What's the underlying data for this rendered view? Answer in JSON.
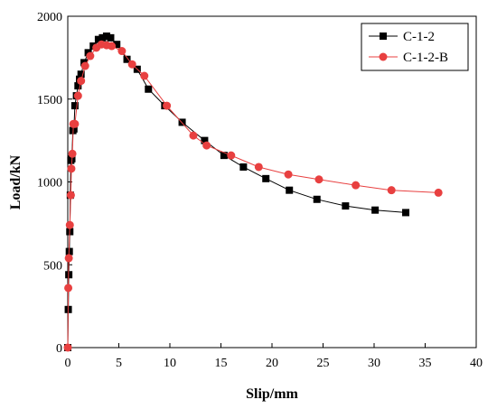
{
  "chart_data": {
    "type": "line",
    "title": "",
    "xlabel": "Slip/mm",
    "ylabel": "Load/kN",
    "xlim": [
      0,
      40
    ],
    "ylim": [
      0,
      2000
    ],
    "xticks": [
      0,
      5,
      10,
      15,
      20,
      25,
      30,
      35,
      40
    ],
    "yticks": [
      0,
      500,
      1000,
      1500,
      2000
    ],
    "grid": false,
    "legend_position": "top-right",
    "series": [
      {
        "name": "C-1-2",
        "color": "#000000",
        "marker": "square",
        "x": [
          0,
          0.05,
          0.1,
          0.15,
          0.2,
          0.25,
          0.3,
          0.4,
          0.5,
          0.6,
          0.7,
          0.85,
          1.0,
          1.15,
          1.3,
          1.6,
          2.0,
          2.5,
          3.0,
          3.4,
          3.8,
          4.2,
          4.8,
          5.8,
          6.8,
          7.9,
          9.5,
          11.2,
          13.4,
          15.3,
          17.2,
          19.4,
          21.7,
          24.4,
          27.2,
          30.1,
          33.1
        ],
        "y": [
          0,
          230,
          440,
          580,
          700,
          920,
          1130,
          1140,
          1310,
          1320,
          1460,
          1520,
          1580,
          1620,
          1650,
          1720,
          1780,
          1820,
          1860,
          1870,
          1880,
          1870,
          1830,
          1740,
          1680,
          1560,
          1460,
          1360,
          1250,
          1160,
          1090,
          1020,
          950,
          895,
          855,
          830,
          815
        ]
      },
      {
        "name": "C-1-2-B",
        "color": "#e84040",
        "marker": "circle",
        "x": [
          0,
          0.05,
          0.1,
          0.2,
          0.3,
          0.35,
          0.45,
          0.55,
          0.7,
          1.0,
          1.3,
          1.7,
          2.2,
          2.8,
          3.3,
          3.8,
          4.3,
          5.3,
          6.3,
          7.5,
          9.7,
          12.3,
          13.6,
          16.0,
          18.7,
          21.6,
          24.6,
          28.2,
          31.7,
          36.3
        ],
        "y": [
          0,
          360,
          540,
          740,
          920,
          1080,
          1170,
          1350,
          1350,
          1520,
          1610,
          1700,
          1760,
          1810,
          1830,
          1825,
          1820,
          1790,
          1710,
          1640,
          1460,
          1280,
          1220,
          1160,
          1090,
          1045,
          1015,
          980,
          950,
          935
        ]
      }
    ]
  }
}
